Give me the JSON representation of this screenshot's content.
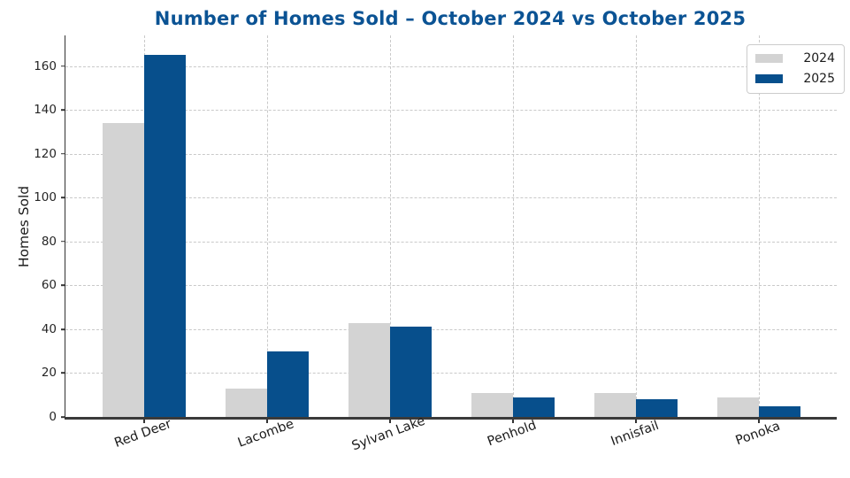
{
  "title": "Number of Homes Sold – October 2024 vs October 2025",
  "colors": {
    "title": "#0b5394",
    "bar_2024": "#d3d3d3",
    "bar_2025": "#074f8c",
    "gridline": "#c9c9c9",
    "axis": "#333333"
  },
  "chart_data": {
    "type": "bar",
    "title": "Number of Homes Sold – October 2024 vs October 2025",
    "xlabel": "",
    "ylabel": "Homes Sold",
    "categories": [
      "Red Deer",
      "Lacombe",
      "Sylvan Lake",
      "Penhold",
      "Innisfail",
      "Ponoka"
    ],
    "series": [
      {
        "name": "2024",
        "color": "#d3d3d3",
        "values": [
          134,
          13,
          43,
          11,
          11,
          9
        ]
      },
      {
        "name": "2025",
        "color": "#074f8c",
        "values": [
          165,
          30,
          41,
          9,
          8,
          5
        ]
      }
    ],
    "yticks": [
      0,
      20,
      40,
      60,
      80,
      100,
      120,
      140,
      160
    ],
    "ylim": [
      0,
      174
    ],
    "grid": "dashed, horizontal and vertical",
    "legend_position": "upper right",
    "xtick_label_rotation_deg": -20
  }
}
